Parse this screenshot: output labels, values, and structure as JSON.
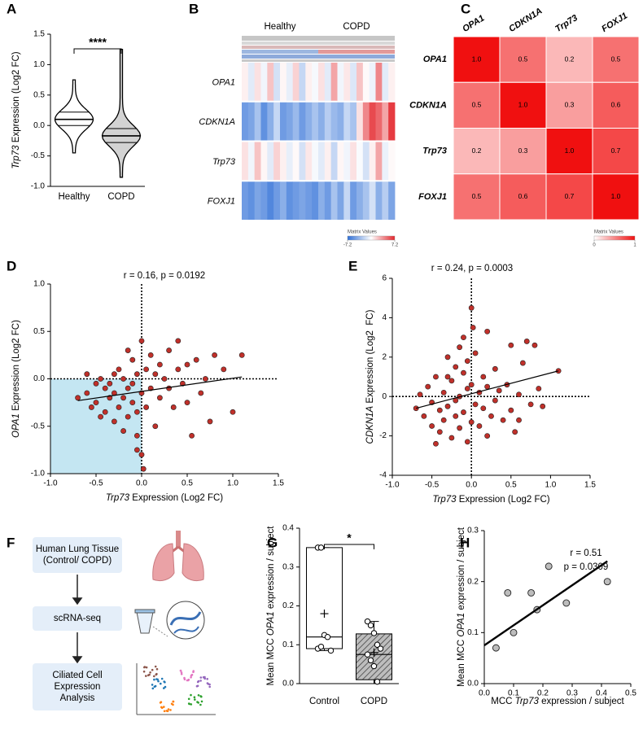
{
  "chart_data": [
    {
      "panel": "A",
      "type": "violin",
      "ylabel": [
        {
          "text": "Trp73",
          "italic": true
        },
        {
          "text": " Expression (Log2 FC)"
        }
      ],
      "categories": [
        "Healthy",
        "COPD"
      ],
      "stats": [
        {
          "min": -0.45,
          "q1": 0.0,
          "median": 0.1,
          "q3": 0.22,
          "max": 0.75
        },
        {
          "min": -0.85,
          "q1": -0.28,
          "median": -0.17,
          "q3": -0.05,
          "max": 1.25
        }
      ],
      "colors": [
        "#ffffff",
        "#d3d3d3"
      ],
      "ylim": [
        -1,
        1.5
      ],
      "yticks": [
        {
          "value": -1,
          "label": "-1.0"
        },
        -0.5,
        {
          "value": 0,
          "label": "0.0"
        },
        0.5,
        {
          "value": 1,
          "label": "1.0"
        },
        1.5
      ],
      "significance": "****"
    },
    {
      "panel": "B",
      "type": "heatmap",
      "groups": [
        "Healthy",
        "COPD"
      ],
      "rows": [
        "OPA1",
        "CDKN1A",
        "Trp73",
        "FOXJ1"
      ],
      "values": [
        [
          0.5,
          -1,
          1,
          -0.5,
          2,
          -1.5,
          0.3,
          -0.8,
          1.5,
          -2,
          0.5,
          -0.3,
          1,
          -1,
          3,
          -0.5,
          0.8,
          -1.2,
          2,
          0.2,
          -0.6,
          4,
          -1,
          0.5
        ],
        [
          -5,
          -4.5,
          -3,
          -5.5,
          -4,
          -2,
          -5,
          -4.5,
          -3.5,
          -5,
          -4,
          -3,
          -4,
          -2.5,
          -3.5,
          -4,
          -2,
          -3,
          1,
          4,
          6,
          5,
          3,
          6.5
        ],
        [
          1,
          -0.5,
          2,
          0.3,
          -1,
          1.5,
          0.5,
          -0.8,
          0.2,
          -1.5,
          0.8,
          -0.3,
          -1,
          0.5,
          -2,
          0.3,
          -0.5,
          1,
          -0.2,
          -1.5,
          0.5,
          3,
          -0.7,
          0.2
        ],
        [
          -5,
          -5.5,
          -4.5,
          -5,
          -6,
          -5,
          -4,
          -5.5,
          -5,
          -4.5,
          -5,
          -5.5,
          -4,
          -5,
          -3,
          -4.5,
          -2,
          -5,
          -4,
          -3,
          -1.5,
          -4,
          -2.5,
          -4.5
        ]
      ],
      "colorbar": {
        "title": "Matrix Values",
        "lim": [
          -7.2,
          7.2
        ],
        "ticks": [
          -7.2,
          7.2
        ],
        "colors": [
          "#2f6fd6",
          "#ffffff",
          "#e3262c"
        ]
      }
    },
    {
      "panel": "C",
      "type": "correlation",
      "columns": [
        "OPA1",
        "CDKN1A",
        "Trp73",
        "FOXJ1"
      ],
      "rows": [
        "OPA1",
        "CDKN1A",
        "Trp73",
        "FOXJ1"
      ],
      "values": [
        [
          1,
          0.5,
          0.2,
          0.5
        ],
        [
          0.5,
          1,
          0.3,
          0.6
        ],
        [
          0.2,
          0.3,
          1,
          0.7
        ],
        [
          0.5,
          0.6,
          0.7,
          1
        ]
      ],
      "value_labels": [
        [
          "1.0",
          "0.5",
          "0.2",
          "0.5"
        ],
        [
          "0.5",
          "1.0",
          "0.3",
          "0.6"
        ],
        [
          "0.2",
          "0.3",
          "1.0",
          "0.7"
        ],
        [
          "0.5",
          "0.6",
          "0.7",
          "1.0"
        ]
      ],
      "colorbar": {
        "title": "Matrix Values",
        "lim": [
          0,
          1
        ],
        "ticks": [
          0,
          1
        ],
        "colors": [
          "#ffffff",
          "#f01010"
        ]
      }
    },
    {
      "panel": "D",
      "type": "scatter",
      "title": "r = 0.16, p = 0.0192",
      "xlabel": [
        {
          "text": "Trp73",
          "italic": true
        },
        {
          "text": " Expression (Log2 FC)"
        }
      ],
      "ylabel": [
        {
          "text": "OPA1",
          "italic": true
        },
        {
          "text": " Expression (Log2 FC)"
        }
      ],
      "x": [
        -0.7,
        -0.6,
        -0.55,
        -0.5,
        -0.5,
        -0.45,
        -0.4,
        -0.4,
        -0.35,
        -0.35,
        -0.3,
        -0.3,
        -0.25,
        -0.25,
        -0.2,
        -0.2,
        -0.2,
        -0.15,
        -0.15,
        -0.15,
        -0.1,
        -0.1,
        -0.1,
        -0.05,
        -0.05,
        -0.05,
        0.0,
        0.0,
        0.0,
        0.02,
        0.05,
        0.05,
        0.1,
        0.1,
        0.15,
        0.15,
        0.2,
        0.2,
        0.25,
        0.3,
        0.3,
        0.35,
        0.4,
        0.4,
        0.45,
        0.5,
        0.5,
        0.55,
        0.6,
        0.65,
        0.7,
        0.75,
        0.8,
        0.9,
        1.0,
        1.1,
        -0.6,
        -0.45,
        -0.3,
        -0.05
      ],
      "y": [
        -0.2,
        -0.15,
        -0.3,
        -0.05,
        -0.25,
        -0.4,
        -0.1,
        -0.35,
        -0.2,
        -0.05,
        -0.45,
        -0.15,
        0.1,
        -0.3,
        -0.2,
        0.0,
        -0.55,
        -0.1,
        0.3,
        -0.4,
        0.2,
        -0.25,
        -0.05,
        0.05,
        -0.6,
        -0.35,
        -0.15,
        0.4,
        -0.8,
        -0.95,
        0.1,
        -0.3,
        -0.1,
        0.25,
        0.05,
        -0.5,
        -0.2,
        0.15,
        0.0,
        -0.1,
        0.3,
        -0.3,
        0.1,
        0.4,
        -0.05,
        -0.25,
        0.15,
        -0.6,
        0.2,
        -0.15,
        0.0,
        -0.45,
        0.25,
        0.1,
        -0.35,
        0.25,
        0.05,
        0.0,
        0.05,
        -0.75
      ],
      "color": "#c0302a",
      "xlim": [
        -1,
        1.5
      ],
      "xticks": [
        {
          "value": -1,
          "label": "-1.0"
        },
        -0.5,
        {
          "value": 0,
          "label": "0.0"
        },
        0.5,
        {
          "value": 1,
          "label": "1.0"
        },
        1.5
      ],
      "ylim": [
        -1,
        1
      ],
      "yticks": [
        {
          "value": -1,
          "label": "-1.0"
        },
        -0.5,
        {
          "value": 0,
          "label": "0.0"
        },
        0.5,
        {
          "value": 1,
          "label": "1.0"
        }
      ],
      "fit": {
        "x": [
          -0.7,
          1.1
        ],
        "y": [
          -0.23,
          0.02
        ]
      },
      "reference_lines": {
        "x": 0,
        "y": 0
      },
      "shaded_quadrant": "lower-left",
      "shade_color": "#c4e6f2"
    },
    {
      "panel": "E",
      "type": "scatter",
      "title": "r = 0.24, p = 0.0003",
      "xlabel": [
        {
          "text": "Trp73",
          "italic": true
        },
        {
          "text": " Expression (Log2 FC)"
        }
      ],
      "ylabel": [
        {
          "text": "CDKN1A",
          "italic": true
        },
        {
          "text": " Expression (Log2  FC)"
        }
      ],
      "x": [
        -0.7,
        -0.6,
        -0.55,
        -0.5,
        -0.5,
        -0.45,
        -0.4,
        -0.4,
        -0.35,
        -0.35,
        -0.3,
        -0.3,
        -0.25,
        -0.25,
        -0.2,
        -0.2,
        -0.2,
        -0.15,
        -0.15,
        -0.15,
        -0.1,
        -0.1,
        -0.1,
        -0.05,
        -0.05,
        -0.05,
        0.0,
        0.0,
        0.0,
        0.02,
        0.05,
        0.05,
        0.1,
        0.1,
        0.15,
        0.15,
        0.2,
        0.2,
        0.25,
        0.3,
        0.3,
        0.35,
        0.4,
        0.45,
        0.5,
        0.5,
        0.55,
        0.6,
        0.65,
        0.7,
        0.75,
        0.8,
        0.85,
        0.9,
        1.1,
        -0.65,
        -0.45,
        -0.3,
        0.6,
        0.2
      ],
      "y": [
        -0.6,
        -1.0,
        0.5,
        -1.5,
        -0.3,
        1.0,
        -1.8,
        -0.7,
        0.2,
        -1.2,
        2.0,
        -0.5,
        -2.1,
        0.8,
        -1.0,
        1.5,
        -0.2,
        -1.6,
        2.5,
        0.0,
        -0.8,
        1.2,
        3.0,
        -2.3,
        0.4,
        1.8,
        4.5,
        -1.3,
        0.6,
        3.5,
        -0.4,
        2.2,
        0.2,
        -1.5,
        1.0,
        -0.6,
        -2.0,
        0.5,
        -1.0,
        1.4,
        -0.2,
        0.3,
        -1.2,
        0.6,
        -0.7,
        2.6,
        -1.8,
        0.1,
        1.7,
        2.8,
        -0.4,
        2.6,
        0.4,
        -0.5,
        1.3,
        0.1,
        -2.4,
        1.0,
        -1.2,
        3.3
      ],
      "color": "#c0302a",
      "xlim": [
        -1,
        1.5
      ],
      "xticks": [
        {
          "value": -1,
          "label": "-1.0"
        },
        -0.5,
        {
          "value": 0,
          "label": "0.0"
        },
        0.5,
        {
          "value": 1,
          "label": "1.0"
        },
        1.5
      ],
      "ylim": [
        -4,
        6
      ],
      "yticks": [
        -4,
        -2,
        0,
        2,
        4,
        6
      ],
      "fit": {
        "x": [
          -0.7,
          1.1
        ],
        "y": [
          -0.6,
          1.3
        ]
      },
      "reference_lines": {
        "x": 0,
        "y": 0
      }
    },
    {
      "panel": "G",
      "type": "box",
      "ylabel": [
        {
          "text": "Mean MCC "
        },
        {
          "text": "OPA1",
          "italic": true
        },
        {
          "text": " expression / subject"
        }
      ],
      "categories": [
        "Control",
        "COPD"
      ],
      "stats": [
        {
          "min": 0.085,
          "q1": 0.09,
          "median": 0.12,
          "q3": 0.35,
          "max": 0.35,
          "mean": 0.18
        },
        {
          "min": 0.0,
          "q1": 0.01,
          "median": 0.075,
          "q3": 0.128,
          "max": 0.16,
          "mean": 0.08
        }
      ],
      "points": [
        [
          0.35,
          0.35,
          0.125,
          0.12,
          0.085,
          0.09,
          0.095
        ],
        [
          0.16,
          0.15,
          0.13,
          0.1,
          0.09,
          0.075,
          0.06,
          0.045,
          0.005
        ]
      ],
      "fills": [
        "#ffffff",
        "hatch"
      ],
      "ylim": [
        0,
        0.4
      ],
      "yticks": [
        {
          "value": 0,
          "label": "0.0"
        },
        0.1,
        0.2,
        0.3,
        0.4
      ],
      "significance": "*"
    },
    {
      "panel": "H",
      "type": "scatter",
      "annotations": [
        "r = 0.51",
        "p = 0.0309"
      ],
      "xlabel": [
        {
          "text": "MCC "
        },
        {
          "text": "Trp73",
          "italic": true
        },
        {
          "text": " expression / subject"
        }
      ],
      "ylabel": [
        {
          "text": "Mean MCC "
        },
        {
          "text": "OPA1",
          "italic": true
        },
        {
          "text": " expression / subject"
        }
      ],
      "x": [
        0.04,
        0.08,
        0.1,
        0.16,
        0.18,
        0.22,
        0.28,
        0.42
      ],
      "y": [
        0.07,
        0.178,
        0.1,
        0.178,
        0.145,
        0.23,
        0.158,
        0.2
      ],
      "color": "#bdbdbd",
      "xlim": [
        0,
        0.5
      ],
      "xticks": [
        {
          "value": 0,
          "label": "0.0"
        },
        0.1,
        0.2,
        0.3,
        0.4,
        0.5
      ],
      "ylim": [
        0,
        0.3
      ],
      "yticks": [
        {
          "value": 0,
          "label": "0.0"
        },
        0.1,
        0.2,
        0.3
      ],
      "fit": {
        "x": [
          0,
          0.42
        ],
        "y": [
          0.075,
          0.24
        ]
      }
    }
  ],
  "diagram": {
    "panel": "F",
    "steps": [
      [
        "Human Lung Tissue",
        "(Control/ COPD)"
      ],
      [
        "scRNA-seq"
      ],
      [
        "Ciliated Cell",
        "Expression",
        "Analysis"
      ]
    ]
  }
}
